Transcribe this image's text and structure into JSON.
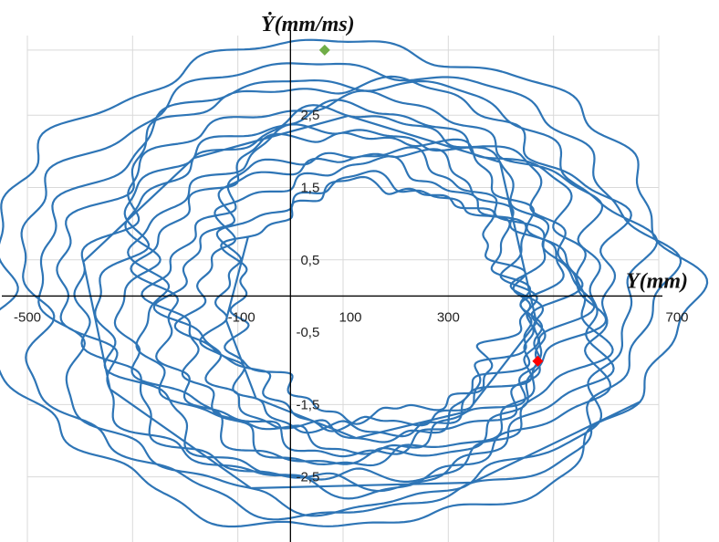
{
  "chart_data": {
    "type": "line",
    "title": "",
    "xlabel": "Y(mm)",
    "ylabel": "Ẏ(mm/ms)",
    "xlim": [
      -500,
      700
    ],
    "ylim": [
      -3.4,
      3.6
    ],
    "grid": true,
    "x_ticks": [
      {
        "value": -500,
        "label": "-500"
      },
      {
        "value": -100,
        "label": "-100"
      },
      {
        "value": 100,
        "label": "100"
      },
      {
        "value": 300,
        "label": "300"
      },
      {
        "value": 700,
        "label": "700"
      }
    ],
    "y_ticks": [
      {
        "value": 2.5,
        "label": "2,5"
      },
      {
        "value": 1.5,
        "label": "1,5"
      },
      {
        "value": 0.5,
        "label": "0,5"
      },
      {
        "value": -0.5,
        "label": "-0,5"
      },
      {
        "value": -1.5,
        "label": "-1,5"
      },
      {
        "value": -2.5,
        "label": "-2,5"
      }
    ],
    "x_grid": [
      -500,
      -300,
      -100,
      100,
      300,
      500,
      700
    ],
    "y_grid": [
      3.4,
      2.5,
      1.5,
      0.5,
      -1.5,
      -2.5
    ],
    "series": [
      {
        "color": "#2e75b6",
        "loops": [
          {
            "cx": 85,
            "cy": 0.15,
            "rx": 655,
            "ry": 3.35,
            "phase": 0.5,
            "wob": [
              0.04,
              0.03,
              0.02
            ],
            "seed": 1
          },
          {
            "cx": 90,
            "cy": 0.1,
            "rx": 600,
            "ry": 3.1,
            "phase": 1.1,
            "wob": [
              0.05,
              0.03,
              0.02
            ],
            "seed": 2
          },
          {
            "cx": 95,
            "cy": 0.05,
            "rx": 560,
            "ry": 2.95,
            "phase": 1.9,
            "wob": [
              0.05,
              0.04,
              0.02
            ],
            "seed": 3
          },
          {
            "cx": 100,
            "cy": 0.15,
            "rx": 520,
            "ry": 2.8,
            "phase": 2.6,
            "wob": [
              0.06,
              0.04,
              0.03
            ],
            "seed": 4
          },
          {
            "cx": 105,
            "cy": 0.05,
            "rx": 490,
            "ry": 2.65,
            "phase": 3.3,
            "wob": [
              0.06,
              0.04,
              0.03
            ],
            "seed": 5
          },
          {
            "cx": 110,
            "cy": 0.0,
            "rx": 460,
            "ry": 2.55,
            "phase": 4.0,
            "wob": [
              0.06,
              0.05,
              0.03
            ],
            "seed": 6
          },
          {
            "cx": 115,
            "cy": 0.1,
            "rx": 430,
            "ry": 2.4,
            "phase": 4.7,
            "wob": [
              0.07,
              0.05,
              0.03
            ],
            "seed": 7
          },
          {
            "cx": 120,
            "cy": 0.0,
            "rx": 405,
            "ry": 2.3,
            "phase": 5.4,
            "wob": [
              0.07,
              0.05,
              0.03
            ],
            "seed": 8
          },
          {
            "cx": 125,
            "cy": 0.05,
            "rx": 385,
            "ry": 2.2,
            "phase": 0.2,
            "wob": [
              0.07,
              0.05,
              0.04
            ],
            "seed": 9
          },
          {
            "cx": 130,
            "cy": -0.05,
            "rx": 360,
            "ry": 2.05,
            "phase": 0.9,
            "wob": [
              0.08,
              0.05,
              0.04
            ],
            "seed": 10
          },
          {
            "cx": 135,
            "cy": 0.0,
            "rx": 340,
            "ry": 1.95,
            "phase": 1.6,
            "wob": [
              0.08,
              0.06,
              0.04
            ],
            "seed": 11
          },
          {
            "cx": 140,
            "cy": -0.05,
            "rx": 315,
            "ry": 1.85,
            "phase": 2.3,
            "wob": [
              0.08,
              0.06,
              0.04
            ],
            "seed": 12
          },
          {
            "cx": 150,
            "cy": -0.1,
            "rx": 290,
            "ry": 1.7,
            "phase": 3.0,
            "wob": [
              0.09,
              0.06,
              0.04
            ],
            "seed": 13
          },
          {
            "cx": 160,
            "cy": -0.05,
            "rx": 270,
            "ry": 1.6,
            "phase": 3.7,
            "wob": [
              0.09,
              0.06,
              0.05
            ],
            "seed": 14
          }
        ]
      }
    ],
    "markers": [
      {
        "x": 65,
        "y": 3.4,
        "color": "#70ad47",
        "shape": "diamond"
      },
      {
        "x": 470,
        "y": -0.9,
        "color": "#ff0000",
        "shape": "diamond"
      }
    ]
  }
}
